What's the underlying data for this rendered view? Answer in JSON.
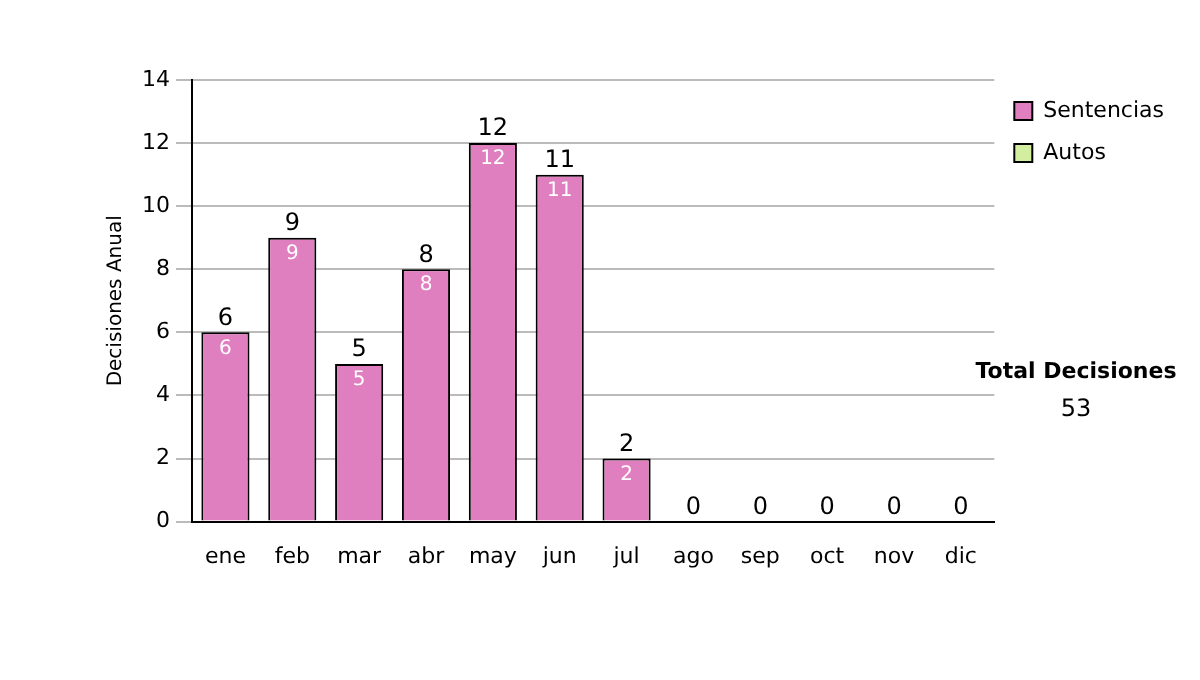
{
  "chart_data": {
    "type": "bar",
    "stacked": true,
    "ylabel": "Decisiones Anual",
    "categories": [
      "ene",
      "feb",
      "mar",
      "abr",
      "may",
      "jun",
      "jul",
      "ago",
      "sep",
      "oct",
      "nov",
      "dic"
    ],
    "series": [
      {
        "name": "Sentencias",
        "color": "#e07fc0",
        "values": [
          6,
          9,
          5,
          8,
          12,
          11,
          2,
          0,
          0,
          0,
          0,
          0
        ],
        "value_labels": [
          "6",
          "9",
          "5",
          "8",
          "12",
          "11",
          "2",
          null,
          null,
          null,
          null,
          null
        ]
      },
      {
        "name": "Autos",
        "color": "#d4eea0",
        "values": [
          0,
          0,
          0,
          0,
          0,
          0,
          0,
          0,
          0,
          0,
          0,
          0
        ]
      }
    ],
    "totals": [
      "6",
      "9",
      "5",
      "8",
      "12",
      "11",
      "2",
      "0",
      "0",
      "0",
      "0",
      "0"
    ],
    "ylim": [
      0,
      14
    ],
    "yticks": [
      0,
      2,
      4,
      6,
      8,
      10,
      12,
      14
    ],
    "grid": "y",
    "legend": "right",
    "annotations": [
      "Total Decisiones",
      "53"
    ]
  }
}
